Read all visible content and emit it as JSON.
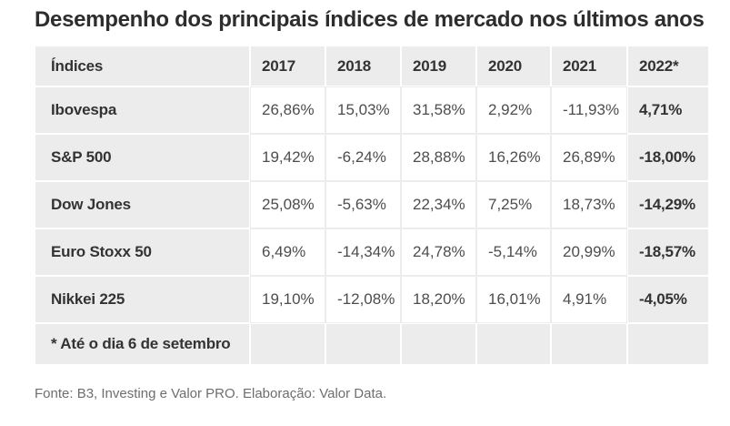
{
  "chart_data": {
    "type": "table",
    "title": "Desempenho dos principais índices de mercado nos últimos anos",
    "columns": [
      "Índices",
      "2017",
      "2018",
      "2019",
      "2020",
      "2021",
      "2022*"
    ],
    "rows": [
      {
        "name": "Ibovespa",
        "values": [
          "26,86%",
          "15,03%",
          "31,58%",
          "2,92%",
          "-11,93%",
          "4,71%"
        ]
      },
      {
        "name": "S&P 500",
        "values": [
          "19,42%",
          "-6,24%",
          "28,88%",
          "16,26%",
          "26,89%",
          "-18,00%"
        ]
      },
      {
        "name": "Dow Jones",
        "values": [
          "25,08%",
          "-5,63%",
          "22,34%",
          "7,25%",
          "18,73%",
          "-14,29%"
        ]
      },
      {
        "name": "Euro Stoxx 50",
        "values": [
          "6,49%",
          "-14,34%",
          "24,78%",
          "-5,14%",
          "20,99%",
          "-18,57%"
        ]
      },
      {
        "name": "Nikkei 225",
        "values": [
          "19,10%",
          "-12,08%",
          "18,20%",
          "16,01%",
          "4,91%",
          "-4,05%"
        ]
      }
    ],
    "footnote": "* Até o dia 6 de setembro",
    "layout": {
      "highlight_column": "2022*",
      "gray_color": "#ececec",
      "header_text_color": "#333333",
      "data_text_color": "#4d4d4d"
    }
  },
  "source_line": "Fonte: B3, Investing e Valor PRO. Elaboração: Valor Data."
}
